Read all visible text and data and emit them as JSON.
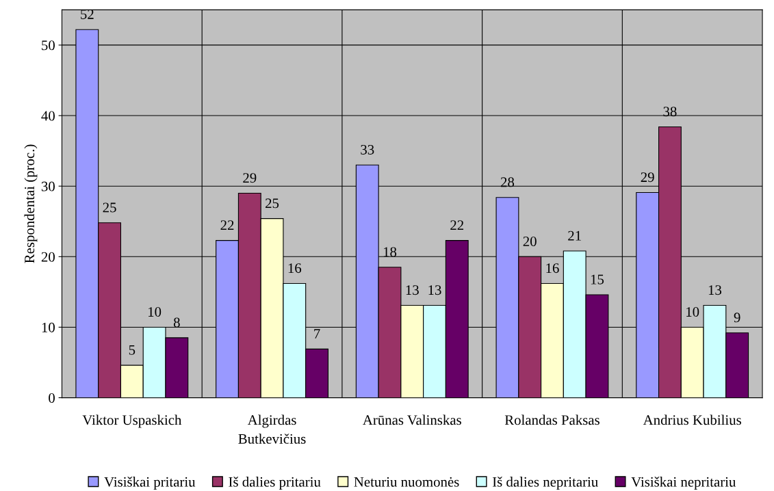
{
  "chart_data": {
    "type": "bar",
    "ylabel": "Respondentai (proc.)",
    "categories": [
      "Viktor Uspaskich",
      "Algirdas\nButkevičius",
      "Arūnas Valinskas",
      "Rolandas Paksas",
      "Andrius Kubilius"
    ],
    "series": [
      {
        "name": "Visiškai pritariu",
        "color": "#9999ff",
        "values": [
          52.2,
          22.3,
          33.0,
          28.4,
          29.1
        ],
        "value_labels": [
          "52",
          "22",
          "33",
          "28",
          "29"
        ]
      },
      {
        "name": "Iš dalies pritariu",
        "color": "#993366",
        "values": [
          24.8,
          29.0,
          18.5,
          20.0,
          38.4
        ],
        "value_labels": [
          "25",
          "29",
          "18",
          "20",
          "38"
        ]
      },
      {
        "name": "Neturiu nuomonės",
        "color": "#ffffcc",
        "values": [
          4.6,
          25.4,
          13.1,
          16.2,
          10.0
        ],
        "value_labels": [
          "5",
          "25",
          "13",
          "16",
          "10"
        ]
      },
      {
        "name": "Iš dalies nepritariu",
        "color": "#ccffff",
        "values": [
          10.0,
          16.2,
          13.1,
          20.8,
          13.1
        ],
        "value_labels": [
          "10",
          "16",
          "13",
          "21",
          "13"
        ]
      },
      {
        "name": "Visiškai nepritariu",
        "color": "#660066",
        "values": [
          8.5,
          6.9,
          22.3,
          14.6,
          9.2
        ],
        "value_labels": [
          "8",
          "7",
          "22",
          "15",
          "9"
        ]
      }
    ],
    "ylim": [
      0,
      55
    ],
    "yticks": [
      0,
      10,
      20,
      30,
      40,
      50
    ],
    "grid": true,
    "legend": "bottom"
  }
}
